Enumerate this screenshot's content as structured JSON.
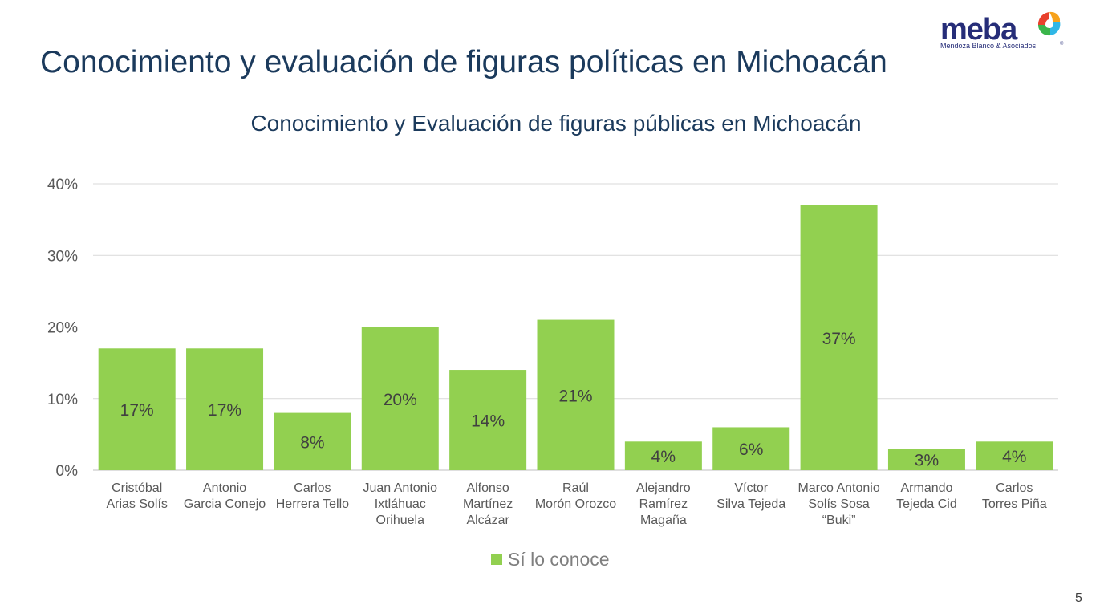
{
  "slide": {
    "title": "Conocimiento y evaluación de figuras políticas en Michoacán",
    "page_number": "5",
    "logo": {
      "word": "meba",
      "subtitle": "Mendoza Blanco & Asociados",
      "reg": "®"
    }
  },
  "colors": {
    "bar": "#92d050",
    "title": "#1b3a5c",
    "axis_text": "#595959",
    "gridline": "#d9d9d9",
    "logo": "#262d78"
  },
  "chart_data": {
    "type": "bar",
    "title": "Conocimiento y Evaluación de figuras públicas en Michoacán",
    "categories": [
      [
        "Cristóbal",
        "Arias Solís"
      ],
      [
        "Antonio",
        "Garcia Conejo"
      ],
      [
        "Carlos",
        "Herrera Tello"
      ],
      [
        "Juan Antonio",
        "Ixtláhuac",
        "Orihuela"
      ],
      [
        "Alfonso",
        "Martínez",
        "Alcázar"
      ],
      [
        "Raúl",
        "Morón Orozco"
      ],
      [
        "Alejandro",
        "Ramírez",
        "Magaña"
      ],
      [
        "Víctor",
        "Silva Tejeda"
      ],
      [
        "Marco Antonio",
        "Solís Sosa",
        "“Buki”"
      ],
      [
        "Armando",
        "Tejeda Cid"
      ],
      [
        "Carlos",
        "Torres Piña"
      ]
    ],
    "series": [
      {
        "name": "Sí lo conoce",
        "values": [
          17,
          17,
          8,
          20,
          14,
          21,
          4,
          6,
          37,
          3,
          4
        ]
      }
    ],
    "data_labels": [
      "17%",
      "17%",
      "8%",
      "20%",
      "14%",
      "21%",
      "4%",
      "6%",
      "37%",
      "3%",
      "4%"
    ],
    "y_ticks": [
      "0%",
      "10%",
      "20%",
      "30%",
      "40%"
    ],
    "ylim": [
      0,
      40
    ],
    "grid": true,
    "legend_position": "bottom"
  }
}
